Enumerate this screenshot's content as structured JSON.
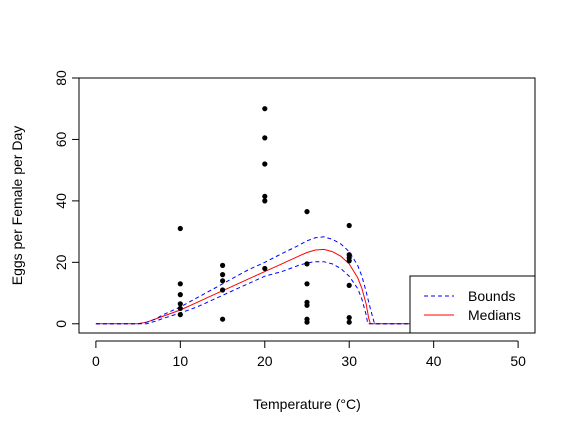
{
  "chart_data": {
    "type": "scatter",
    "title": "",
    "xlabel": "Temperature (°C)",
    "ylabel": "Eggs per Female per Day",
    "xlim": [
      -2,
      52
    ],
    "ylim": [
      -3,
      80
    ],
    "x_ticks": [
      0,
      10,
      20,
      30,
      40,
      50
    ],
    "x_tick_labels": [
      "0",
      "10",
      "20",
      "30",
      "40",
      "50"
    ],
    "y_ticks": [
      0,
      20,
      40,
      60,
      80
    ],
    "y_tick_labels": [
      "0",
      "20",
      "40",
      "60",
      "80"
    ],
    "grid": false,
    "legend_position": "bottom-right",
    "legend": [
      {
        "label": "Bounds",
        "color": "#0000ff",
        "style": "dashed"
      },
      {
        "label": "Medians",
        "color": "#ff0000",
        "style": "solid"
      }
    ],
    "points": [
      {
        "x": 10,
        "y": 31
      },
      {
        "x": 10,
        "y": 13
      },
      {
        "x": 10,
        "y": 9.5
      },
      {
        "x": 10,
        "y": 6.5
      },
      {
        "x": 10,
        "y": 5
      },
      {
        "x": 10,
        "y": 3
      },
      {
        "x": 15,
        "y": 19
      },
      {
        "x": 15,
        "y": 16
      },
      {
        "x": 15,
        "y": 14
      },
      {
        "x": 15,
        "y": 11
      },
      {
        "x": 15,
        "y": 1.5
      },
      {
        "x": 20,
        "y": 70
      },
      {
        "x": 20,
        "y": 60.5
      },
      {
        "x": 20,
        "y": 52
      },
      {
        "x": 20,
        "y": 41.5
      },
      {
        "x": 20,
        "y": 40
      },
      {
        "x": 20,
        "y": 18
      },
      {
        "x": 25,
        "y": 36.5
      },
      {
        "x": 25,
        "y": 19.5
      },
      {
        "x": 25,
        "y": 13
      },
      {
        "x": 25,
        "y": 7
      },
      {
        "x": 25,
        "y": 6
      },
      {
        "x": 25,
        "y": 1.5
      },
      {
        "x": 25,
        "y": 0.5
      },
      {
        "x": 30,
        "y": 32
      },
      {
        "x": 30,
        "y": 22.5
      },
      {
        "x": 30,
        "y": 21.5
      },
      {
        "x": 30,
        "y": 20.5
      },
      {
        "x": 30,
        "y": 12.5
      },
      {
        "x": 30,
        "y": 2
      },
      {
        "x": 30,
        "y": 0.5
      }
    ],
    "series": [
      {
        "name": "Medians",
        "color": "#ff0000",
        "style": "solid",
        "x": [
          0,
          5,
          6,
          7,
          8,
          10,
          12,
          14,
          16,
          18,
          20,
          22,
          24,
          25,
          26,
          27,
          28,
          29,
          30,
          31,
          31.5,
          32,
          32.3,
          32.5,
          35,
          40,
          50
        ],
        "y": [
          0,
          0,
          0.5,
          1.5,
          2.5,
          4.5,
          7,
          9.5,
          12,
          14.5,
          17,
          19.5,
          22,
          23.2,
          24,
          24.2,
          23.5,
          22,
          19.5,
          15,
          11.5,
          6.5,
          2,
          0,
          0,
          0,
          0
        ]
      },
      {
        "name": "Bounds",
        "color": "#0000ff",
        "style": "dashed",
        "x": [
          0,
          5,
          6,
          7,
          8,
          10,
          12,
          14,
          16,
          18,
          20,
          22,
          24,
          25,
          26,
          27,
          28,
          29,
          30,
          31,
          31.5,
          32,
          32.5,
          32.9,
          33,
          35,
          40,
          50
        ],
        "y": [
          0,
          0,
          0.5,
          1.5,
          3,
          5.5,
          8.5,
          11.5,
          14.5,
          17.5,
          20,
          22.8,
          25.5,
          27,
          28,
          28.3,
          27.5,
          26,
          23.5,
          19,
          15.5,
          10.5,
          5,
          1,
          0,
          0,
          0,
          0
        ]
      },
      {
        "name": "Bounds-lower",
        "color": "#0000ff",
        "style": "dashed",
        "x": [
          0,
          6,
          7,
          8,
          10,
          12,
          14,
          16,
          18,
          20,
          22,
          24,
          25,
          26,
          27,
          28,
          29,
          30,
          31,
          31.5,
          32,
          32.2,
          35,
          40,
          50
        ],
        "y": [
          0,
          0,
          0.8,
          1.8,
          3.5,
          5.5,
          8,
          10.5,
          13,
          15.5,
          17,
          19,
          19.8,
          20.2,
          20.2,
          19.5,
          18,
          15.5,
          11.5,
          8,
          3,
          0,
          0,
          0,
          0
        ]
      }
    ]
  }
}
